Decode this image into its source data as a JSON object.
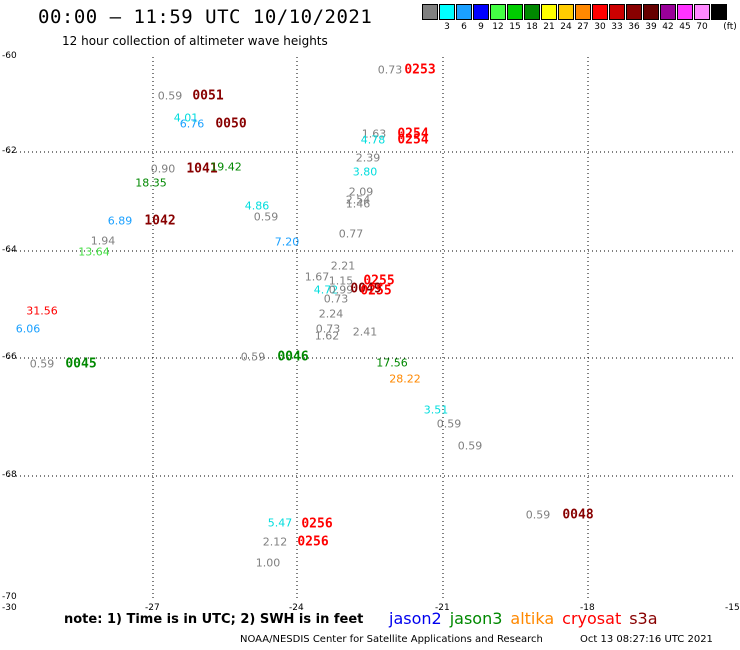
{
  "header": {
    "title": "00:00 – 11:59 UTC 10/10/2021",
    "subtitle": "12 hour collection of altimeter wave heights"
  },
  "colorbar": {
    "unit": "(ft)",
    "swatches": [
      {
        "label": "",
        "color": "#808080"
      },
      {
        "label": "3",
        "color": "#00ffff"
      },
      {
        "label": "6",
        "color": "#1aa0ff"
      },
      {
        "label": "9",
        "color": "#0000ff"
      },
      {
        "label": "12",
        "color": "#44ff44"
      },
      {
        "label": "15",
        "color": "#00cc00"
      },
      {
        "label": "18",
        "color": "#008800"
      },
      {
        "label": "21",
        "color": "#ffff00"
      },
      {
        "label": "24",
        "color": "#ffcc00"
      },
      {
        "label": "27",
        "color": "#ff8800"
      },
      {
        "label": "30",
        "color": "#ff0000"
      },
      {
        "label": "33",
        "color": "#cc0000"
      },
      {
        "label": "36",
        "color": "#880000"
      },
      {
        "label": "39",
        "color": "#660000"
      },
      {
        "label": "42",
        "color": "#990099"
      },
      {
        "label": "45",
        "color": "#ff33ff"
      },
      {
        "label": "70",
        "color": "#ff88ff"
      },
      {
        "label": "",
        "color": "#000000"
      }
    ]
  },
  "map": {
    "lat_ticks": [
      "-60",
      "-62",
      "-64",
      "-66",
      "-68",
      "-70"
    ],
    "lon_ticks": [
      "-30",
      "-27",
      "-24",
      "-21",
      "-18",
      "-15"
    ]
  },
  "observations": [
    {
      "text": "0.73",
      "color": "#808080",
      "kind": "val"
    },
    {
      "text": "0253",
      "color": "#ff0000",
      "kind": "time"
    },
    {
      "text": "0.59",
      "color": "#808080",
      "kind": "val"
    },
    {
      "text": "0051",
      "color": "#880000",
      "kind": "time"
    },
    {
      "text": "4.01",
      "color": "#00dddd",
      "kind": "val"
    },
    {
      "text": "6.76",
      "color": "#1aa0ff",
      "kind": "val"
    },
    {
      "text": "0050",
      "color": "#880000",
      "kind": "time"
    },
    {
      "text": "1.63",
      "color": "#808080",
      "kind": "val"
    },
    {
      "text": "4.78",
      "color": "#00dddd",
      "kind": "val"
    },
    {
      "text": "0254",
      "color": "#ff0000",
      "kind": "time"
    },
    {
      "text": "0254",
      "color": "#ff0000",
      "kind": "time"
    },
    {
      "text": "2.39",
      "color": "#808080",
      "kind": "val"
    },
    {
      "text": "3.80",
      "color": "#00dddd",
      "kind": "val"
    },
    {
      "text": "0.90",
      "color": "#808080",
      "kind": "val"
    },
    {
      "text": "1041",
      "color": "#880000",
      "kind": "time"
    },
    {
      "text": "19.42",
      "color": "#008800",
      "kind": "val"
    },
    {
      "text": "18.35",
      "color": "#008800",
      "kind": "val"
    },
    {
      "text": "2.09",
      "color": "#808080",
      "kind": "val"
    },
    {
      "text": "2.54",
      "color": "#808080",
      "kind": "val"
    },
    {
      "text": "1.46",
      "color": "#808080",
      "kind": "val"
    },
    {
      "text": "4.86",
      "color": "#00dddd",
      "kind": "val"
    },
    {
      "text": "0.59",
      "color": "#808080",
      "kind": "val"
    },
    {
      "text": "6.89",
      "color": "#1aa0ff",
      "kind": "val"
    },
    {
      "text": "1042",
      "color": "#880000",
      "kind": "time"
    },
    {
      "text": "0.77",
      "color": "#808080",
      "kind": "val"
    },
    {
      "text": "1.94",
      "color": "#808080",
      "kind": "val"
    },
    {
      "text": "7.20",
      "color": "#1aa0ff",
      "kind": "val"
    },
    {
      "text": "13.64",
      "color": "#44dd44",
      "kind": "val"
    },
    {
      "text": "2.21",
      "color": "#808080",
      "kind": "val"
    },
    {
      "text": "1.67",
      "color": "#808080",
      "kind": "val"
    },
    {
      "text": "1.15",
      "color": "#808080",
      "kind": "val"
    },
    {
      "text": "0255",
      "color": "#ff0000",
      "kind": "time"
    },
    {
      "text": "4.72",
      "color": "#00dddd",
      "kind": "val"
    },
    {
      "text": "0.99",
      "color": "#808080",
      "kind": "val"
    },
    {
      "text": "0049",
      "color": "#880000",
      "kind": "time"
    },
    {
      "text": "0255",
      "color": "#ff0000",
      "kind": "time"
    },
    {
      "text": "0.73",
      "color": "#808080",
      "kind": "val"
    },
    {
      "text": "31.56",
      "color": "#ff0000",
      "kind": "val"
    },
    {
      "text": "6.06",
      "color": "#1aa0ff",
      "kind": "val"
    },
    {
      "text": "2.24",
      "color": "#808080",
      "kind": "val"
    },
    {
      "text": "0.73",
      "color": "#808080",
      "kind": "val"
    },
    {
      "text": "1.62",
      "color": "#808080",
      "kind": "val"
    },
    {
      "text": "2.41",
      "color": "#808080",
      "kind": "val"
    },
    {
      "text": "0.59",
      "color": "#808080",
      "kind": "val"
    },
    {
      "text": "0045",
      "color": "#008800",
      "kind": "time"
    },
    {
      "text": "0.59",
      "color": "#808080",
      "kind": "val"
    },
    {
      "text": "0046",
      "color": "#008800",
      "kind": "time"
    },
    {
      "text": "17.56",
      "color": "#008800",
      "kind": "val"
    },
    {
      "text": "28.22",
      "color": "#ff8800",
      "kind": "val"
    },
    {
      "text": "3.51",
      "color": "#00dddd",
      "kind": "val"
    },
    {
      "text": "0.59",
      "color": "#808080",
      "kind": "val"
    },
    {
      "text": "0.59",
      "color": "#808080",
      "kind": "val"
    },
    {
      "text": "0.59",
      "color": "#808080",
      "kind": "val"
    },
    {
      "text": "0048",
      "color": "#880000",
      "kind": "time"
    },
    {
      "text": "5.47",
      "color": "#00dddd",
      "kind": "val"
    },
    {
      "text": "0256",
      "color": "#ff0000",
      "kind": "time"
    },
    {
      "text": "2.12",
      "color": "#808080",
      "kind": "val"
    },
    {
      "text": "0256",
      "color": "#ff0000",
      "kind": "time"
    },
    {
      "text": "1.00",
      "color": "#808080",
      "kind": "val"
    }
  ],
  "footer": {
    "note": "note: 1) Time is in UTC; 2) SWH is in feet",
    "satellites": [
      {
        "name": "jason2",
        "color": "#0000ee"
      },
      {
        "name": "jason3",
        "color": "#008800"
      },
      {
        "name": "altika",
        "color": "#ff8800"
      },
      {
        "name": "cryosat",
        "color": "#ff0000"
      },
      {
        "name": "s3a",
        "color": "#880000"
      }
    ],
    "credit": "NOAA/NESDIS Center for Satellite Applications and Research",
    "timestamp": "Oct 13 08:27:16 UTC 2021"
  }
}
